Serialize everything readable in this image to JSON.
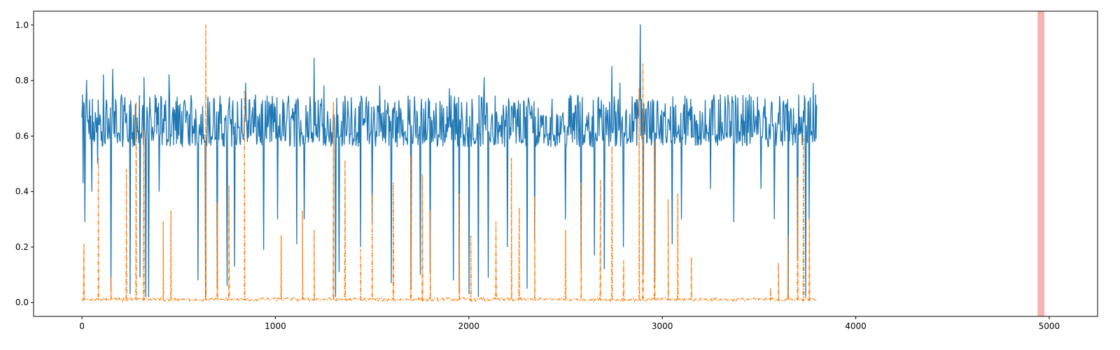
{
  "chart_data": {
    "type": "line",
    "title": "",
    "xlabel": "",
    "ylabel": "",
    "xlim": [
      -250,
      5250
    ],
    "ylim": [
      -0.05,
      1.05
    ],
    "x_ticks": [
      0,
      1000,
      2000,
      3000,
      4000,
      5000
    ],
    "y_ticks": [
      0.0,
      0.2,
      0.4,
      0.6,
      0.8,
      1.0
    ],
    "grid": false,
    "legend": "none",
    "n_points": 3800,
    "colors": {
      "series_1": "#1f77b4",
      "series_2": "#ff7f0e",
      "highlight": "#f08080"
    },
    "highlight_span": {
      "x_start": 4940,
      "x_end": 4975,
      "opacity": 0.6
    },
    "series": [
      {
        "style": "solid",
        "baseline": 0.62,
        "baseline_range": [
          0.55,
          0.75
        ],
        "max": {
          "x": 2885,
          "y": 1.0
        },
        "peaks": [
          {
            "x": 10,
            "y": 0.72
          },
          {
            "x": 25,
            "y": 0.8
          },
          {
            "x": 110,
            "y": 0.82
          },
          {
            "x": 160,
            "y": 0.84
          },
          {
            "x": 320,
            "y": 0.81
          },
          {
            "x": 450,
            "y": 0.82
          },
          {
            "x": 845,
            "y": 0.79
          },
          {
            "x": 1200,
            "y": 0.88
          },
          {
            "x": 1250,
            "y": 0.78
          },
          {
            "x": 1540,
            "y": 0.78
          },
          {
            "x": 1900,
            "y": 0.77
          },
          {
            "x": 2080,
            "y": 0.81
          },
          {
            "x": 2740,
            "y": 0.85
          },
          {
            "x": 2780,
            "y": 0.79
          },
          {
            "x": 2885,
            "y": 1.0
          },
          {
            "x": 3290,
            "y": 0.73
          },
          {
            "x": 3780,
            "y": 0.79
          }
        ],
        "dips": [
          {
            "x": 5,
            "y": 0.43
          },
          {
            "x": 15,
            "y": 0.29
          },
          {
            "x": 50,
            "y": 0.4
          },
          {
            "x": 80,
            "y": 0.5
          },
          {
            "x": 150,
            "y": 0.04
          },
          {
            "x": 250,
            "y": 0.03
          },
          {
            "x": 300,
            "y": 0.09
          },
          {
            "x": 330,
            "y": 0.02
          },
          {
            "x": 345,
            "y": 0.02
          },
          {
            "x": 400,
            "y": 0.4
          },
          {
            "x": 600,
            "y": 0.08
          },
          {
            "x": 640,
            "y": 0.02
          },
          {
            "x": 700,
            "y": 0.05
          },
          {
            "x": 750,
            "y": 0.06
          },
          {
            "x": 790,
            "y": 0.13
          },
          {
            "x": 940,
            "y": 0.19
          },
          {
            "x": 1010,
            "y": 0.3
          },
          {
            "x": 1110,
            "y": 0.21
          },
          {
            "x": 1150,
            "y": 0.3
          },
          {
            "x": 1310,
            "y": 0.02
          },
          {
            "x": 1330,
            "y": 0.11
          },
          {
            "x": 1440,
            "y": 0.2
          },
          {
            "x": 1500,
            "y": 0.28
          },
          {
            "x": 1600,
            "y": 0.07
          },
          {
            "x": 1700,
            "y": 0.05
          },
          {
            "x": 1750,
            "y": 0.1
          },
          {
            "x": 1800,
            "y": 0.1
          },
          {
            "x": 1920,
            "y": 0.08
          },
          {
            "x": 1950,
            "y": 0.03
          },
          {
            "x": 2000,
            "y": 0.03
          },
          {
            "x": 2050,
            "y": 0.02
          },
          {
            "x": 2100,
            "y": 0.09
          },
          {
            "x": 2200,
            "y": 0.2
          },
          {
            "x": 2300,
            "y": 0.05
          },
          {
            "x": 2340,
            "y": 0.22
          },
          {
            "x": 2500,
            "y": 0.3
          },
          {
            "x": 2580,
            "y": 0.12
          },
          {
            "x": 2650,
            "y": 0.17
          },
          {
            "x": 2700,
            "y": 0.12
          },
          {
            "x": 2800,
            "y": 0.2
          },
          {
            "x": 2900,
            "y": 0.1
          },
          {
            "x": 2960,
            "y": 0.07
          },
          {
            "x": 3050,
            "y": 0.21
          },
          {
            "x": 3100,
            "y": 0.3
          },
          {
            "x": 3250,
            "y": 0.41
          },
          {
            "x": 3370,
            "y": 0.29
          },
          {
            "x": 3510,
            "y": 0.41
          },
          {
            "x": 3580,
            "y": 0.3
          },
          {
            "x": 3650,
            "y": 0.02
          },
          {
            "x": 3700,
            "y": 0.15
          },
          {
            "x": 3740,
            "y": 0.02
          },
          {
            "x": 3760,
            "y": 0.3
          }
        ]
      },
      {
        "style": "dash-dot",
        "baseline": 0.005,
        "max": {
          "x": 640,
          "y": 1.0
        },
        "peaks": [
          {
            "x": 10,
            "y": 0.21
          },
          {
            "x": 85,
            "y": 0.52
          },
          {
            "x": 150,
            "y": 0.09
          },
          {
            "x": 230,
            "y": 0.48
          },
          {
            "x": 280,
            "y": 0.72
          },
          {
            "x": 320,
            "y": 0.62
          },
          {
            "x": 420,
            "y": 0.29
          },
          {
            "x": 460,
            "y": 0.33
          },
          {
            "x": 640,
            "y": 1.0
          },
          {
            "x": 700,
            "y": 0.36
          },
          {
            "x": 760,
            "y": 0.42
          },
          {
            "x": 840,
            "y": 0.76
          },
          {
            "x": 1030,
            "y": 0.24
          },
          {
            "x": 1140,
            "y": 0.33
          },
          {
            "x": 1200,
            "y": 0.26
          },
          {
            "x": 1300,
            "y": 0.72
          },
          {
            "x": 1360,
            "y": 0.51
          },
          {
            "x": 1440,
            "y": 0.19
          },
          {
            "x": 1500,
            "y": 0.39
          },
          {
            "x": 1610,
            "y": 0.43
          },
          {
            "x": 1700,
            "y": 0.53
          },
          {
            "x": 1760,
            "y": 0.46
          },
          {
            "x": 1800,
            "y": 0.33
          },
          {
            "x": 1950,
            "y": 0.39
          },
          {
            "x": 2010,
            "y": 0.24
          },
          {
            "x": 2140,
            "y": 0.29
          },
          {
            "x": 2220,
            "y": 0.52
          },
          {
            "x": 2260,
            "y": 0.34
          },
          {
            "x": 2340,
            "y": 0.38
          },
          {
            "x": 2500,
            "y": 0.26
          },
          {
            "x": 2580,
            "y": 0.43
          },
          {
            "x": 2680,
            "y": 0.44
          },
          {
            "x": 2740,
            "y": 0.56
          },
          {
            "x": 2800,
            "y": 0.15
          },
          {
            "x": 2880,
            "y": 0.77
          },
          {
            "x": 2900,
            "y": 0.86
          },
          {
            "x": 2960,
            "y": 0.58
          },
          {
            "x": 3030,
            "y": 0.37
          },
          {
            "x": 3080,
            "y": 0.39
          },
          {
            "x": 3150,
            "y": 0.16
          },
          {
            "x": 3560,
            "y": 0.05
          },
          {
            "x": 3600,
            "y": 0.14
          },
          {
            "x": 3650,
            "y": 0.24
          },
          {
            "x": 3700,
            "y": 0.45
          },
          {
            "x": 3730,
            "y": 0.6
          },
          {
            "x": 3760,
            "y": 0.3
          }
        ]
      }
    ]
  }
}
